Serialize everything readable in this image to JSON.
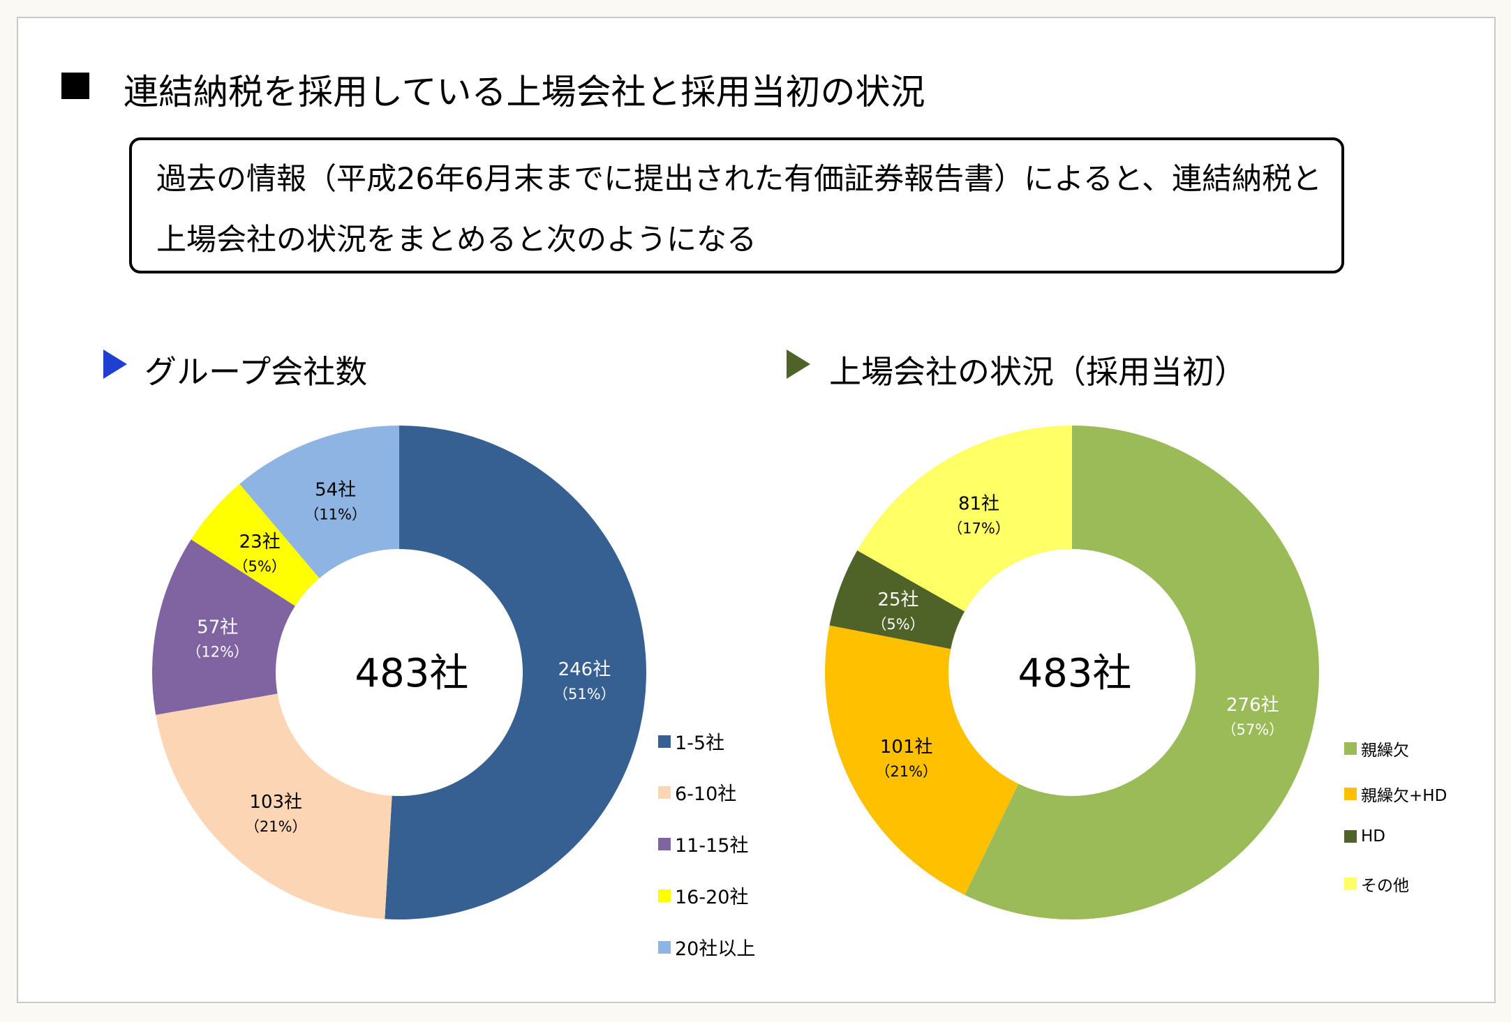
{
  "title": "連結納税を採用している上場会社と採用当初の状況",
  "box": {
    "line1": "過去の情報（平成26年6月末までに提出された有価証券報告書）によると、連結納税と",
    "line2": "上場会社の状況をまとめると次のようになる"
  },
  "chart_data": [
    {
      "type": "pie",
      "title": "グループ会社数",
      "center_label": "483社",
      "categories": [
        "1-5社",
        "6-10社",
        "11-15社",
        "16-20社",
        "20社以上"
      ],
      "values": [
        246,
        103,
        57,
        23,
        54
      ],
      "value_labels": [
        "246社",
        "103社",
        "57社",
        "23社",
        "54社"
      ],
      "percent_labels": [
        "（51%）",
        "（21%）",
        "（12%）",
        "（5%）",
        "（11%）"
      ],
      "colors": [
        "#376092",
        "#FCD5B5",
        "#8064A2",
        "#FFFF00",
        "#8DB4E2"
      ],
      "label_colors": [
        "#ffffff",
        "#000000",
        "#ffffff",
        "#000000",
        "#000000"
      ],
      "legend": "right"
    },
    {
      "type": "pie",
      "title": "上場会社の状況（採用当初）",
      "center_label": "483社",
      "categories": [
        "親繰欠",
        "親繰欠+HD",
        "HD",
        "その他"
      ],
      "values": [
        276,
        101,
        25,
        81
      ],
      "value_labels": [
        "276社",
        "101社",
        "25社",
        "81社"
      ],
      "percent_labels": [
        "（57%）",
        "（21%）",
        "（5%）",
        "（17%）"
      ],
      "colors": [
        "#9BBB59",
        "#FFC000",
        "#4F6228",
        "#FFFF66"
      ],
      "label_colors": [
        "#ffffff",
        "#000000",
        "#ffffff",
        "#000000"
      ],
      "legend": "right"
    }
  ],
  "section_colors": [
    "#1F3FD0",
    "#4F6228"
  ]
}
